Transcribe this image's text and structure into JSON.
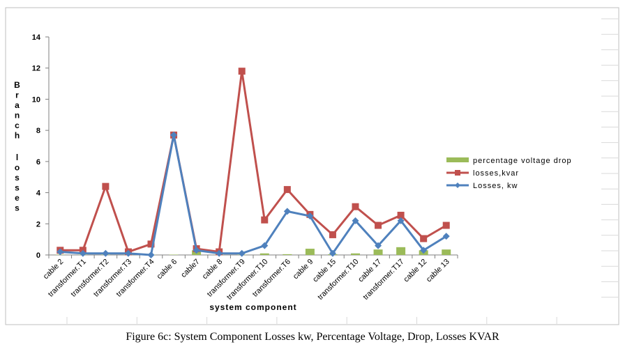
{
  "chart_data": {
    "type": "line",
    "title": "",
    "caption": "Figure 6c:  System Component Losses kw, Percentage Voltage, Drop, Losses KVAR",
    "xlabel": "system component",
    "ylabel": "Branch losses",
    "ylim": [
      0,
      14
    ],
    "yticks": [
      0,
      2,
      4,
      6,
      8,
      10,
      12,
      14
    ],
    "grid": false,
    "legend_position": "right",
    "categories": [
      "cable 2",
      "transformer.T1",
      "transformer.T2",
      "transformer.T3",
      "transformer.T4",
      "cable 6",
      "cable7",
      "cable 8",
      "transformer.T9",
      "transformer.T10",
      "transformer.T6",
      "cable 9",
      "cable 15",
      "transformer.T10",
      "cable 17",
      "transformer.T17",
      "cable 12",
      "cable 13"
    ],
    "series": [
      {
        "name": "percentage voltage drop",
        "kind": "bar",
        "color": "#9bbb59",
        "values": [
          0.02,
          0.02,
          0.02,
          0.02,
          0.02,
          0.02,
          0.3,
          0.02,
          0.02,
          0.1,
          0.05,
          0.4,
          0.05,
          0.1,
          0.35,
          0.5,
          0.3,
          0.35
        ]
      },
      {
        "name": "losses,kvar",
        "kind": "line",
        "marker": "square",
        "color": "#c0504d",
        "values": [
          0.3,
          0.3,
          4.4,
          0.2,
          0.7,
          7.7,
          0.4,
          0.2,
          11.8,
          2.25,
          4.2,
          2.6,
          1.3,
          3.1,
          1.9,
          2.55,
          1.05,
          1.9
        ]
      },
      {
        "name": "Losses, kw",
        "kind": "line",
        "marker": "diamond",
        "color": "#4f81bd",
        "values": [
          0.2,
          0.1,
          0.1,
          0.1,
          0.0,
          7.7,
          0.3,
          0.1,
          0.1,
          0.6,
          2.8,
          2.5,
          0.1,
          2.2,
          0.6,
          2.2,
          0.3,
          1.2
        ]
      }
    ]
  }
}
